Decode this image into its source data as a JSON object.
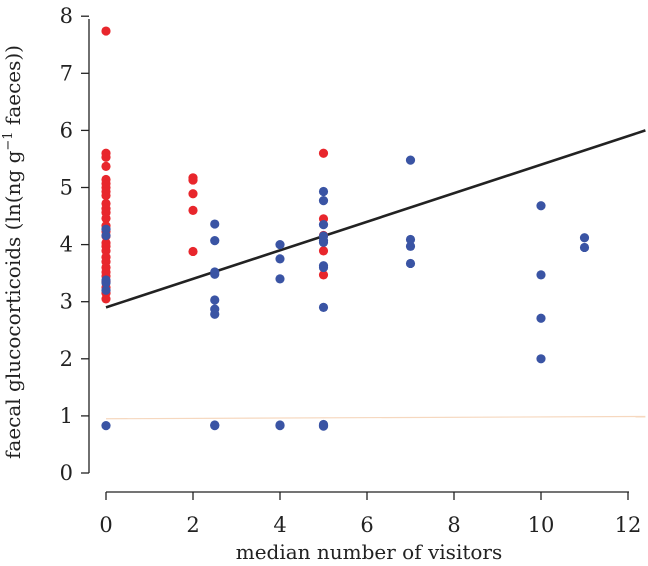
{
  "chart_data": {
    "type": "scatter",
    "title": "",
    "xlabel": "median number of visitors",
    "ylabel": "faecal glucocorticoids (ln(ng g",
    "ylabel_sup": "−1",
    "ylabel_end": " faeces))",
    "xlim": [
      0,
      12.4
    ],
    "ylim": [
      0,
      8.4
    ],
    "x_ticks": [
      "0",
      "2",
      "4",
      "6",
      "8",
      "10",
      "12"
    ],
    "y_ticks": [
      "0",
      "1",
      "2",
      "3",
      "4",
      "5",
      "6",
      "7",
      "8"
    ],
    "grid": false,
    "legend": "none",
    "colors": {
      "red": "#e8262c",
      "blue": "#3a54a4",
      "line": "#222222",
      "faint_line": "#f6d8bf"
    },
    "series": [
      {
        "color": "red",
        "points": [
          [
            0,
            7.74
          ],
          [
            0,
            5.6
          ],
          [
            0,
            5.53
          ],
          [
            0,
            5.37
          ],
          [
            0,
            5.14
          ],
          [
            0,
            5.07
          ],
          [
            0,
            5.0
          ],
          [
            0,
            4.93
          ],
          [
            0,
            4.86
          ],
          [
            0,
            4.72
          ],
          [
            0,
            4.63
          ],
          [
            0,
            4.56
          ],
          [
            0,
            4.46
          ],
          [
            0,
            4.33
          ],
          [
            0,
            4.23
          ],
          [
            0,
            4.15
          ],
          [
            0,
            4.03
          ],
          [
            0,
            3.97
          ],
          [
            0,
            3.89
          ],
          [
            0,
            3.78
          ],
          [
            0,
            3.7
          ],
          [
            0,
            3.6
          ],
          [
            0,
            3.52
          ],
          [
            0,
            3.45
          ],
          [
            0,
            3.35
          ],
          [
            0,
            3.25
          ],
          [
            0,
            3.15
          ],
          [
            0,
            3.05
          ],
          [
            2,
            5.17
          ],
          [
            2,
            5.13
          ],
          [
            2,
            4.89
          ],
          [
            2,
            4.6
          ],
          [
            2,
            3.88
          ],
          [
            5,
            5.6
          ],
          [
            5,
            4.45
          ],
          [
            5,
            4.16
          ],
          [
            5,
            3.89
          ],
          [
            5,
            3.47
          ]
        ]
      },
      {
        "color": "blue",
        "points": [
          [
            0,
            4.27
          ],
          [
            0,
            4.16
          ],
          [
            0,
            3.38
          ],
          [
            0,
            3.33
          ],
          [
            0,
            3.2
          ],
          [
            0,
            0.83
          ],
          [
            2.5,
            4.36
          ],
          [
            2.5,
            4.07
          ],
          [
            2.5,
            3.52
          ],
          [
            2.5,
            3.48
          ],
          [
            2.5,
            3.03
          ],
          [
            2.5,
            2.87
          ],
          [
            2.5,
            2.78
          ],
          [
            2.5,
            0.84
          ],
          [
            2.5,
            0.83
          ],
          [
            4,
            4.0
          ],
          [
            4,
            3.75
          ],
          [
            4,
            3.4
          ],
          [
            4,
            0.84
          ],
          [
            4,
            0.83
          ],
          [
            5,
            4.93
          ],
          [
            5,
            4.77
          ],
          [
            5,
            4.35
          ],
          [
            5,
            4.15
          ],
          [
            5,
            4.07
          ],
          [
            5,
            4.04
          ],
          [
            5,
            3.63
          ],
          [
            5,
            3.6
          ],
          [
            5,
            2.9
          ],
          [
            5,
            0.85
          ],
          [
            5,
            0.84
          ],
          [
            5,
            0.83
          ],
          [
            5,
            0.82
          ],
          [
            7,
            5.48
          ],
          [
            7,
            4.09
          ],
          [
            7,
            3.97
          ],
          [
            7,
            3.67
          ],
          [
            10,
            4.68
          ],
          [
            10,
            3.47
          ],
          [
            10,
            2.71
          ],
          [
            10,
            2.0
          ],
          [
            11,
            4.12
          ],
          [
            11,
            3.95
          ]
        ]
      }
    ],
    "fit_line": {
      "x": [
        0,
        12.4
      ],
      "y": [
        2.9,
        6.0
      ]
    },
    "faint_line": {
      "x": [
        0,
        12.4
      ],
      "y": [
        0.95,
        0.99
      ]
    }
  }
}
